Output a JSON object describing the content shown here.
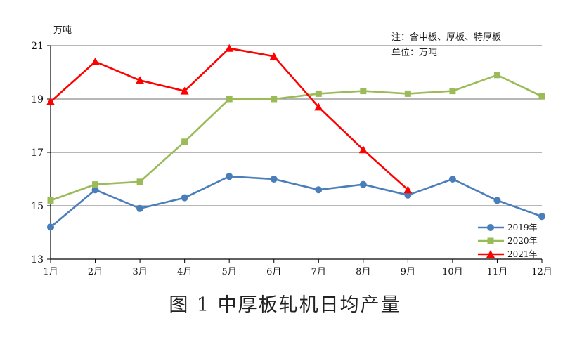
{
  "caption": "图 1   中厚板轧机日均产量",
  "chart_data": {
    "type": "line",
    "unit_label": "万吨",
    "notes": [
      "注：含中板、厚板、特厚板",
      "单位：万吨"
    ],
    "categories": [
      "1月",
      "2月",
      "3月",
      "4月",
      "5月",
      "6月",
      "7月",
      "8月",
      "9月",
      "10月",
      "11月",
      "12月"
    ],
    "ylim": [
      13,
      21
    ],
    "yticks": [
      13,
      15,
      17,
      19,
      21
    ],
    "grid": true,
    "legend_position": "bottom-right",
    "series": [
      {
        "name": "2019年",
        "color": "#4a7ebb",
        "marker": "circle",
        "values": [
          14.2,
          15.6,
          14.9,
          15.3,
          16.1,
          16.0,
          15.6,
          15.8,
          15.4,
          16.0,
          15.2,
          14.6
        ]
      },
      {
        "name": "2020年",
        "color": "#9bbb59",
        "marker": "square",
        "values": [
          15.2,
          15.8,
          15.9,
          17.4,
          19.0,
          19.0,
          19.2,
          19.3,
          19.2,
          19.3,
          19.9,
          19.1
        ]
      },
      {
        "name": "2021年",
        "color": "#ff0000",
        "marker": "triangle",
        "values": [
          18.9,
          20.4,
          19.7,
          19.3,
          20.9,
          20.6,
          18.7,
          17.1,
          15.6,
          null,
          null,
          null
        ]
      }
    ]
  }
}
